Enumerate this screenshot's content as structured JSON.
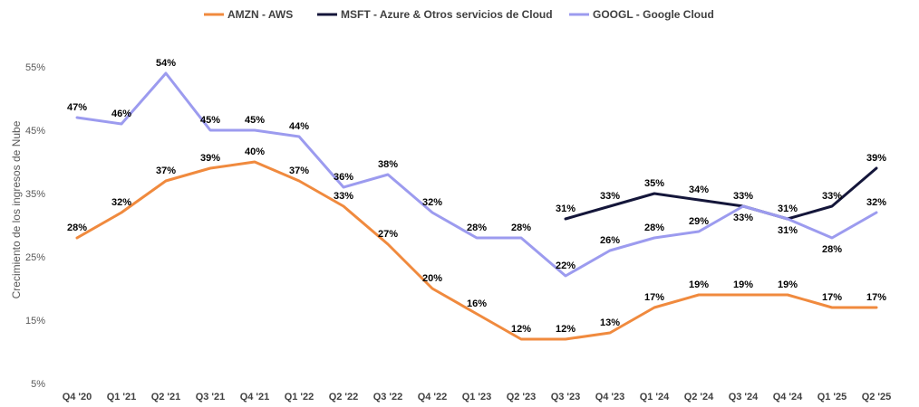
{
  "chart_data": {
    "type": "line",
    "ylabel": "Crecimiento de los ingresos de Nube",
    "ylim": [
      5,
      55
    ],
    "yticks": [
      "5%",
      "15%",
      "25%",
      "35%",
      "45%",
      "55%"
    ],
    "grid": false,
    "legend_position": "top-center",
    "categories": [
      "Q4 '20",
      "Q1 '21",
      "Q2 '21",
      "Q3 '21",
      "Q4 '21",
      "Q1 '22",
      "Q2 '22",
      "Q3 '22",
      "Q4 '22",
      "Q1 '23",
      "Q2 '23",
      "Q3 '23",
      "Q4 '23",
      "Q1 '24",
      "Q2 '24",
      "Q3 '24",
      "Q4 '24",
      "Q1 '25",
      "Q2 '25"
    ],
    "series": [
      {
        "name": "AMZN - AWS",
        "color": "#F08A3E",
        "values": [
          28,
          32,
          37,
          39,
          40,
          37,
          33,
          27,
          20,
          16,
          12,
          12,
          13,
          17,
          19,
          19,
          19,
          17,
          17
        ],
        "labels": [
          "28%",
          "32%",
          "37%",
          "39%",
          "40%",
          "37%",
          "33%",
          "27%",
          "20%",
          "16%",
          "12%",
          "12%",
          "13%",
          "17%",
          "19%",
          "19%",
          "19%",
          "17%",
          "17%"
        ],
        "label_pos": [
          "above",
          "above",
          "above",
          "above",
          "above",
          "above",
          "above",
          "above",
          "above",
          "above",
          "above",
          "above",
          "above",
          "above",
          "above",
          "above",
          "above",
          "above",
          "above"
        ]
      },
      {
        "name": "MSFT - Azure & Otros servicios de Cloud",
        "color": "#14163A",
        "values": [
          null,
          null,
          null,
          null,
          null,
          null,
          null,
          null,
          null,
          null,
          null,
          31,
          33,
          35,
          34,
          33,
          31,
          33,
          39
        ],
        "labels": [
          null,
          null,
          null,
          null,
          null,
          null,
          null,
          null,
          null,
          null,
          null,
          "31%",
          "33%",
          "35%",
          "34%",
          "33%",
          "31%",
          "33%",
          "39%"
        ],
        "label_pos": [
          null,
          null,
          null,
          null,
          null,
          null,
          null,
          null,
          null,
          null,
          null,
          "above",
          "above",
          "above",
          "above",
          "above",
          "above",
          "above",
          "above"
        ]
      },
      {
        "name": "GOOGL - Google Cloud",
        "color": "#9C9BEF",
        "values": [
          47,
          46,
          54,
          45,
          45,
          44,
          36,
          38,
          32,
          28,
          28,
          22,
          26,
          28,
          29,
          33,
          31,
          28,
          32
        ],
        "labels": [
          "47%",
          "46%",
          "54%",
          "45%",
          "45%",
          "44%",
          "36%",
          "38%",
          "32%",
          "28%",
          "28%",
          "22%",
          "26%",
          "28%",
          "29%",
          "33%",
          "31%",
          "28%",
          "32%"
        ],
        "label_pos": [
          "above",
          "above",
          "above",
          "above",
          "above",
          "above",
          "above",
          "above",
          "above",
          "above",
          "above",
          "above",
          "above",
          "above",
          "above",
          "below",
          "below",
          "below",
          "above"
        ]
      }
    ]
  }
}
